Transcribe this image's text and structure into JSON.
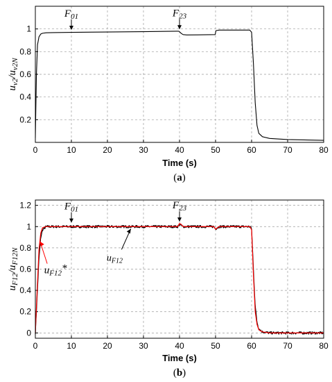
{
  "chart_data": [
    {
      "type": "line",
      "panel": "a",
      "caption": "(a)",
      "xlabel": "Time (s)",
      "ylabel_main": "u",
      "ylabel_sub": "v2",
      "ylabel_sep": "/",
      "ylabel_main2": "u",
      "ylabel_sub2": "v2N",
      "xlim": [
        0,
        80
      ],
      "ylim": [
        0,
        1.2
      ],
      "xticks": [
        0,
        10,
        20,
        30,
        40,
        50,
        60,
        70,
        80
      ],
      "yticks": [
        0.2,
        0.4,
        0.6,
        0.8,
        1
      ],
      "grid": true,
      "series": [
        {
          "color": "#000000",
          "x": [
            0,
            0.3,
            0.6,
            1,
            1.5,
            2,
            3,
            5,
            10,
            20,
            30,
            39.8,
            40,
            40.5,
            41,
            42,
            45,
            49.9,
            50.1,
            51,
            53,
            55,
            59.5,
            60,
            60.5,
            61,
            61.5,
            62,
            63,
            65,
            70,
            80
          ],
          "y": [
            0.04,
            0.6,
            0.86,
            0.93,
            0.955,
            0.962,
            0.966,
            0.968,
            0.97,
            0.973,
            0.976,
            0.98,
            0.975,
            0.96,
            0.95,
            0.947,
            0.948,
            0.95,
            0.985,
            0.99,
            0.99,
            0.99,
            0.99,
            0.97,
            0.7,
            0.35,
            0.15,
            0.08,
            0.05,
            0.035,
            0.025,
            0.018
          ]
        }
      ],
      "annotations": [
        {
          "label_main": "F",
          "label_sub": "01",
          "x": 10,
          "y": 0.985
        },
        {
          "label_main": "F",
          "label_sub": "23",
          "x": 40,
          "y": 0.99
        }
      ]
    },
    {
      "type": "line",
      "panel": "b",
      "caption": "(b)",
      "xlabel": "Time (s)",
      "ylabel_main": "u",
      "ylabel_sub": "F12",
      "ylabel_sep": "/",
      "ylabel_main2": "u",
      "ylabel_sub2": "F12N",
      "xlim": [
        0,
        80
      ],
      "ylim": [
        -0.05,
        1.25
      ],
      "xticks": [
        0,
        10,
        20,
        30,
        40,
        50,
        60,
        70,
        80
      ],
      "yticks": [
        0,
        0.2,
        0.4,
        0.6,
        0.8,
        1,
        1.2
      ],
      "grid": true,
      "series": [
        {
          "name_main": "u",
          "name_sub": "F12",
          "color": "#000000",
          "noise": 0.012,
          "x": [
            0,
            0.5,
            1,
            1.5,
            2,
            3,
            5,
            10,
            20,
            30,
            39.5,
            40,
            40.5,
            41,
            49.5,
            50,
            50.5,
            51,
            59.5,
            60,
            60.5,
            61,
            61.5,
            62,
            63,
            65,
            70,
            80
          ],
          "y": [
            0,
            0.35,
            0.7,
            0.9,
            0.97,
            1.0,
            1.0,
            1.0,
            1.0,
            1.0,
            1.0,
            1.02,
            1.01,
            1.0,
            1.0,
            0.98,
            0.99,
            1.0,
            1.0,
            0.98,
            0.6,
            0.25,
            0.1,
            0.04,
            0.01,
            0.0,
            0.0,
            0.0
          ]
        },
        {
          "name_main": "u",
          "name_sub": "F12",
          "name_suffix": "*",
          "color": "#ff0000",
          "noise": 0,
          "x": [
            0,
            0.5,
            1,
            1.5,
            2,
            3,
            5,
            10,
            20,
            30,
            39.5,
            40,
            40.5,
            41,
            49.5,
            50,
            50.5,
            51,
            59.5,
            60,
            60.5,
            61,
            61.5,
            62,
            63,
            65,
            70,
            80
          ],
          "y": [
            0,
            0.4,
            0.78,
            0.94,
            0.99,
            1.0,
            1.0,
            1.0,
            1.0,
            1.0,
            1.0,
            1.03,
            1.02,
            1.0,
            1.0,
            0.975,
            0.99,
            1.0,
            1.0,
            0.97,
            0.55,
            0.2,
            0.08,
            0.03,
            0.01,
            0.0,
            0.0,
            0.0
          ]
        }
      ],
      "annotations": [
        {
          "label_main": "F",
          "label_sub": "01",
          "x": 10,
          "y": 1.03
        },
        {
          "label_main": "F",
          "label_sub": "23",
          "x": 40,
          "y": 1.04
        }
      ]
    }
  ]
}
